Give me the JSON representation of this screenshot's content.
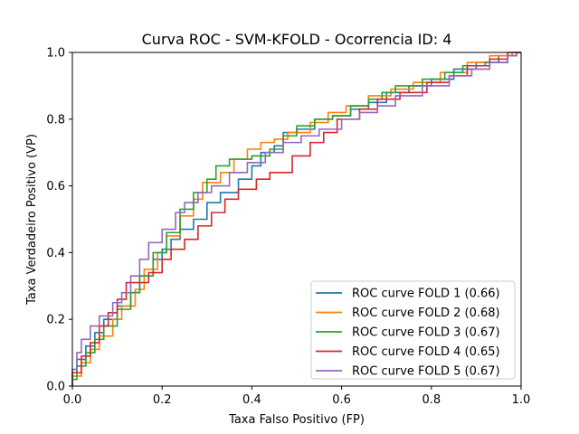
{
  "chart_data": {
    "type": "line",
    "title": "Curva ROC - SVM-KFOLD - Ocorrencia ID: 4",
    "xlabel": "Taxa Falso Positivo (FP)",
    "ylabel": "Taxa Verdadeiro Positivo (VP)",
    "xlim": [
      0,
      1
    ],
    "ylim": [
      0,
      1
    ],
    "xticks": [
      "0.0",
      "0.2",
      "0.4",
      "0.6",
      "0.8",
      "1.0"
    ],
    "yticks": [
      "0.0",
      "0.2",
      "0.4",
      "0.6",
      "0.8",
      "1.0"
    ],
    "grid": false,
    "legend_position": "lower right",
    "series": [
      {
        "name": "ROC curve FOLD 1 (0.66)",
        "color": "#1f77b4",
        "points": [
          [
            0.0,
            0.0
          ],
          [
            0.0,
            0.04
          ],
          [
            0.01,
            0.04
          ],
          [
            0.01,
            0.08
          ],
          [
            0.03,
            0.08
          ],
          [
            0.03,
            0.12
          ],
          [
            0.05,
            0.12
          ],
          [
            0.05,
            0.16
          ],
          [
            0.07,
            0.16
          ],
          [
            0.07,
            0.2
          ],
          [
            0.1,
            0.2
          ],
          [
            0.1,
            0.24
          ],
          [
            0.13,
            0.24
          ],
          [
            0.13,
            0.28
          ],
          [
            0.15,
            0.28
          ],
          [
            0.15,
            0.33
          ],
          [
            0.18,
            0.33
          ],
          [
            0.18,
            0.38
          ],
          [
            0.2,
            0.38
          ],
          [
            0.2,
            0.41
          ],
          [
            0.22,
            0.41
          ],
          [
            0.22,
            0.44
          ],
          [
            0.24,
            0.44
          ],
          [
            0.24,
            0.47
          ],
          [
            0.27,
            0.47
          ],
          [
            0.27,
            0.5
          ],
          [
            0.3,
            0.5
          ],
          [
            0.3,
            0.55
          ],
          [
            0.33,
            0.55
          ],
          [
            0.33,
            0.58
          ],
          [
            0.37,
            0.58
          ],
          [
            0.37,
            0.62
          ],
          [
            0.4,
            0.62
          ],
          [
            0.4,
            0.66
          ],
          [
            0.42,
            0.66
          ],
          [
            0.42,
            0.7
          ],
          [
            0.45,
            0.7
          ],
          [
            0.45,
            0.72
          ],
          [
            0.47,
            0.72
          ],
          [
            0.47,
            0.76
          ],
          [
            0.5,
            0.76
          ],
          [
            0.5,
            0.77
          ],
          [
            0.54,
            0.77
          ],
          [
            0.54,
            0.8
          ],
          [
            0.58,
            0.8
          ],
          [
            0.58,
            0.81
          ],
          [
            0.62,
            0.81
          ],
          [
            0.62,
            0.83
          ],
          [
            0.66,
            0.83
          ],
          [
            0.66,
            0.85
          ],
          [
            0.7,
            0.85
          ],
          [
            0.7,
            0.88
          ],
          [
            0.75,
            0.88
          ],
          [
            0.75,
            0.9
          ],
          [
            0.8,
            0.9
          ],
          [
            0.8,
            0.92
          ],
          [
            0.85,
            0.92
          ],
          [
            0.85,
            0.95
          ],
          [
            0.9,
            0.95
          ],
          [
            0.9,
            0.97
          ],
          [
            0.95,
            0.97
          ],
          [
            0.95,
            0.99
          ],
          [
            0.99,
            0.99
          ],
          [
            0.99,
            1.0
          ],
          [
            1.0,
            1.0
          ]
        ]
      },
      {
        "name": "ROC curve FOLD 2 (0.68)",
        "color": "#ff7f0e",
        "points": [
          [
            0.0,
            0.0
          ],
          [
            0.0,
            0.03
          ],
          [
            0.02,
            0.03
          ],
          [
            0.02,
            0.07
          ],
          [
            0.04,
            0.07
          ],
          [
            0.04,
            0.11
          ],
          [
            0.06,
            0.11
          ],
          [
            0.06,
            0.15
          ],
          [
            0.09,
            0.15
          ],
          [
            0.09,
            0.2
          ],
          [
            0.11,
            0.2
          ],
          [
            0.11,
            0.24
          ],
          [
            0.14,
            0.24
          ],
          [
            0.14,
            0.29
          ],
          [
            0.16,
            0.29
          ],
          [
            0.16,
            0.35
          ],
          [
            0.19,
            0.35
          ],
          [
            0.19,
            0.4
          ],
          [
            0.21,
            0.4
          ],
          [
            0.21,
            0.45
          ],
          [
            0.24,
            0.45
          ],
          [
            0.24,
            0.51
          ],
          [
            0.27,
            0.51
          ],
          [
            0.27,
            0.56
          ],
          [
            0.29,
            0.56
          ],
          [
            0.29,
            0.61
          ],
          [
            0.33,
            0.61
          ],
          [
            0.33,
            0.64
          ],
          [
            0.36,
            0.64
          ],
          [
            0.36,
            0.68
          ],
          [
            0.39,
            0.68
          ],
          [
            0.39,
            0.71
          ],
          [
            0.42,
            0.71
          ],
          [
            0.42,
            0.73
          ],
          [
            0.45,
            0.73
          ],
          [
            0.45,
            0.74
          ],
          [
            0.48,
            0.74
          ],
          [
            0.48,
            0.76
          ],
          [
            0.53,
            0.76
          ],
          [
            0.53,
            0.79
          ],
          [
            0.57,
            0.79
          ],
          [
            0.57,
            0.82
          ],
          [
            0.61,
            0.82
          ],
          [
            0.61,
            0.84
          ],
          [
            0.66,
            0.84
          ],
          [
            0.66,
            0.87
          ],
          [
            0.71,
            0.87
          ],
          [
            0.71,
            0.89
          ],
          [
            0.76,
            0.89
          ],
          [
            0.76,
            0.91
          ],
          [
            0.82,
            0.91
          ],
          [
            0.82,
            0.94
          ],
          [
            0.88,
            0.94
          ],
          [
            0.88,
            0.97
          ],
          [
            0.93,
            0.97
          ],
          [
            0.93,
            0.99
          ],
          [
            0.98,
            0.99
          ],
          [
            0.98,
            1.0
          ],
          [
            1.0,
            1.0
          ]
        ]
      },
      {
        "name": "ROC curve FOLD 3 (0.67)",
        "color": "#2ca02c",
        "points": [
          [
            0.0,
            0.0
          ],
          [
            0.0,
            0.02
          ],
          [
            0.01,
            0.02
          ],
          [
            0.01,
            0.06
          ],
          [
            0.03,
            0.06
          ],
          [
            0.03,
            0.1
          ],
          [
            0.05,
            0.1
          ],
          [
            0.05,
            0.14
          ],
          [
            0.07,
            0.14
          ],
          [
            0.07,
            0.18
          ],
          [
            0.1,
            0.18
          ],
          [
            0.1,
            0.23
          ],
          [
            0.13,
            0.23
          ],
          [
            0.13,
            0.28
          ],
          [
            0.15,
            0.28
          ],
          [
            0.15,
            0.33
          ],
          [
            0.18,
            0.33
          ],
          [
            0.18,
            0.4
          ],
          [
            0.21,
            0.4
          ],
          [
            0.21,
            0.46
          ],
          [
            0.24,
            0.46
          ],
          [
            0.24,
            0.53
          ],
          [
            0.27,
            0.53
          ],
          [
            0.27,
            0.58
          ],
          [
            0.3,
            0.58
          ],
          [
            0.3,
            0.62
          ],
          [
            0.32,
            0.62
          ],
          [
            0.32,
            0.66
          ],
          [
            0.35,
            0.66
          ],
          [
            0.35,
            0.68
          ],
          [
            0.4,
            0.68
          ],
          [
            0.4,
            0.69
          ],
          [
            0.44,
            0.69
          ],
          [
            0.44,
            0.71
          ],
          [
            0.47,
            0.71
          ],
          [
            0.47,
            0.75
          ],
          [
            0.5,
            0.75
          ],
          [
            0.5,
            0.78
          ],
          [
            0.54,
            0.78
          ],
          [
            0.54,
            0.8
          ],
          [
            0.58,
            0.8
          ],
          [
            0.58,
            0.81
          ],
          [
            0.62,
            0.81
          ],
          [
            0.62,
            0.84
          ],
          [
            0.66,
            0.84
          ],
          [
            0.66,
            0.86
          ],
          [
            0.69,
            0.86
          ],
          [
            0.69,
            0.88
          ],
          [
            0.72,
            0.88
          ],
          [
            0.72,
            0.9
          ],
          [
            0.78,
            0.9
          ],
          [
            0.78,
            0.92
          ],
          [
            0.83,
            0.92
          ],
          [
            0.83,
            0.94
          ],
          [
            0.87,
            0.94
          ],
          [
            0.87,
            0.96
          ],
          [
            0.92,
            0.96
          ],
          [
            0.92,
            0.97
          ],
          [
            0.97,
            0.97
          ],
          [
            0.97,
            0.99
          ],
          [
            0.99,
            0.99
          ],
          [
            0.99,
            1.0
          ],
          [
            1.0,
            1.0
          ]
        ]
      },
      {
        "name": "ROC curve FOLD 4 (0.65)",
        "color": "#d62728",
        "points": [
          [
            0.0,
            0.0
          ],
          [
            0.0,
            0.04
          ],
          [
            0.02,
            0.04
          ],
          [
            0.02,
            0.09
          ],
          [
            0.04,
            0.09
          ],
          [
            0.04,
            0.13
          ],
          [
            0.06,
            0.13
          ],
          [
            0.06,
            0.18
          ],
          [
            0.08,
            0.18
          ],
          [
            0.08,
            0.22
          ],
          [
            0.1,
            0.22
          ],
          [
            0.1,
            0.26
          ],
          [
            0.12,
            0.26
          ],
          [
            0.12,
            0.31
          ],
          [
            0.17,
            0.31
          ],
          [
            0.17,
            0.34
          ],
          [
            0.2,
            0.34
          ],
          [
            0.2,
            0.38
          ],
          [
            0.22,
            0.38
          ],
          [
            0.22,
            0.41
          ],
          [
            0.25,
            0.41
          ],
          [
            0.25,
            0.44
          ],
          [
            0.28,
            0.44
          ],
          [
            0.28,
            0.48
          ],
          [
            0.31,
            0.48
          ],
          [
            0.31,
            0.52
          ],
          [
            0.34,
            0.52
          ],
          [
            0.34,
            0.56
          ],
          [
            0.37,
            0.56
          ],
          [
            0.37,
            0.59
          ],
          [
            0.41,
            0.59
          ],
          [
            0.41,
            0.62
          ],
          [
            0.44,
            0.62
          ],
          [
            0.44,
            0.64
          ],
          [
            0.49,
            0.64
          ],
          [
            0.49,
            0.69
          ],
          [
            0.53,
            0.69
          ],
          [
            0.53,
            0.73
          ],
          [
            0.56,
            0.73
          ],
          [
            0.56,
            0.76
          ],
          [
            0.59,
            0.76
          ],
          [
            0.59,
            0.8
          ],
          [
            0.64,
            0.8
          ],
          [
            0.64,
            0.83
          ],
          [
            0.68,
            0.83
          ],
          [
            0.68,
            0.86
          ],
          [
            0.73,
            0.86
          ],
          [
            0.73,
            0.88
          ],
          [
            0.79,
            0.88
          ],
          [
            0.79,
            0.91
          ],
          [
            0.84,
            0.91
          ],
          [
            0.84,
            0.93
          ],
          [
            0.88,
            0.93
          ],
          [
            0.88,
            0.96
          ],
          [
            0.93,
            0.96
          ],
          [
            0.93,
            0.98
          ],
          [
            0.97,
            0.98
          ],
          [
            0.97,
            1.0
          ],
          [
            1.0,
            1.0
          ]
        ]
      },
      {
        "name": "ROC curve FOLD 5 (0.67)",
        "color": "#9467bd",
        "points": [
          [
            0.0,
            0.0
          ],
          [
            0.0,
            0.05
          ],
          [
            0.01,
            0.05
          ],
          [
            0.01,
            0.1
          ],
          [
            0.02,
            0.1
          ],
          [
            0.02,
            0.14
          ],
          [
            0.04,
            0.14
          ],
          [
            0.04,
            0.18
          ],
          [
            0.06,
            0.18
          ],
          [
            0.06,
            0.21
          ],
          [
            0.09,
            0.21
          ],
          [
            0.09,
            0.25
          ],
          [
            0.11,
            0.25
          ],
          [
            0.11,
            0.28
          ],
          [
            0.13,
            0.28
          ],
          [
            0.13,
            0.33
          ],
          [
            0.15,
            0.33
          ],
          [
            0.15,
            0.38
          ],
          [
            0.17,
            0.38
          ],
          [
            0.17,
            0.43
          ],
          [
            0.2,
            0.43
          ],
          [
            0.2,
            0.47
          ],
          [
            0.23,
            0.47
          ],
          [
            0.23,
            0.52
          ],
          [
            0.25,
            0.52
          ],
          [
            0.25,
            0.55
          ],
          [
            0.28,
            0.55
          ],
          [
            0.28,
            0.58
          ],
          [
            0.31,
            0.58
          ],
          [
            0.31,
            0.6
          ],
          [
            0.35,
            0.6
          ],
          [
            0.35,
            0.64
          ],
          [
            0.39,
            0.64
          ],
          [
            0.39,
            0.67
          ],
          [
            0.43,
            0.67
          ],
          [
            0.43,
            0.7
          ],
          [
            0.47,
            0.7
          ],
          [
            0.47,
            0.73
          ],
          [
            0.51,
            0.73
          ],
          [
            0.51,
            0.75
          ],
          [
            0.55,
            0.75
          ],
          [
            0.55,
            0.77
          ],
          [
            0.6,
            0.77
          ],
          [
            0.6,
            0.8
          ],
          [
            0.64,
            0.8
          ],
          [
            0.64,
            0.82
          ],
          [
            0.68,
            0.82
          ],
          [
            0.68,
            0.84
          ],
          [
            0.72,
            0.84
          ],
          [
            0.72,
            0.87
          ],
          [
            0.78,
            0.87
          ],
          [
            0.78,
            0.9
          ],
          [
            0.84,
            0.9
          ],
          [
            0.84,
            0.93
          ],
          [
            0.89,
            0.93
          ],
          [
            0.89,
            0.95
          ],
          [
            0.93,
            0.95
          ],
          [
            0.93,
            0.97
          ],
          [
            0.97,
            0.97
          ],
          [
            0.97,
            0.99
          ],
          [
            0.99,
            0.99
          ],
          [
            0.99,
            1.0
          ],
          [
            1.0,
            1.0
          ]
        ]
      }
    ]
  }
}
